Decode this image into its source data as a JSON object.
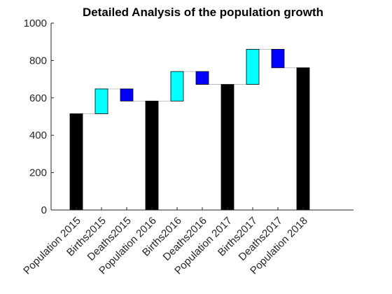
{
  "chart_data": {
    "type": "bar",
    "subtype": "waterfall",
    "title": "Detailed Analysis of the population growth",
    "xlabel": "",
    "ylabel": "",
    "ylim": [
      0,
      1000
    ],
    "yticks": [
      0,
      200,
      400,
      600,
      800,
      1000
    ],
    "grid": false,
    "legend": "none",
    "categories": [
      "Population 2015",
      "Births2015",
      "Deaths2015",
      "Population 2016",
      "Births2016",
      "Deaths2016",
      "Population 2017",
      "Births2017",
      "Deaths2017",
      "Population 2018"
    ],
    "bars": [
      {
        "kind": "total",
        "low": 0,
        "high": 515
      },
      {
        "kind": "increase",
        "low": 515,
        "high": 648
      },
      {
        "kind": "decrease",
        "low": 583,
        "high": 648
      },
      {
        "kind": "total",
        "low": 0,
        "high": 583
      },
      {
        "kind": "increase",
        "low": 583,
        "high": 741
      },
      {
        "kind": "decrease",
        "low": 672,
        "high": 741
      },
      {
        "kind": "total",
        "low": 0,
        "high": 672
      },
      {
        "kind": "increase",
        "low": 672,
        "high": 860
      },
      {
        "kind": "decrease",
        "low": 761,
        "high": 860
      },
      {
        "kind": "total",
        "low": 0,
        "high": 761
      }
    ],
    "colors": {
      "total": "#000000",
      "increase": "#00ffff",
      "decrease": "#0000ff"
    }
  }
}
